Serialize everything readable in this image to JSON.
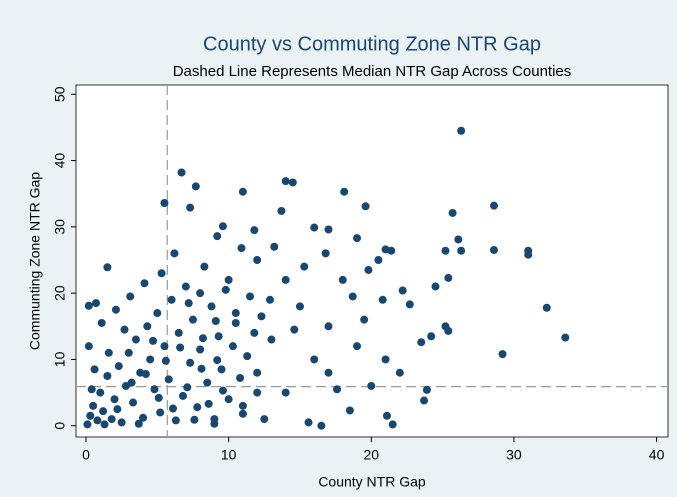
{
  "chart_data": {
    "type": "scatter",
    "title": "County vs Commuting Zone NTR Gap",
    "subtitle": "Dashed Line Represents Median NTR Gap Across Counties",
    "x_label": "County NTR Gap",
    "y_label": "Communting Zone NTR Gap",
    "xlim": [
      -0.7,
      40.8
    ],
    "ylim": [
      -1.7,
      51.4
    ],
    "xticks": [
      0,
      10,
      20,
      30,
      40
    ],
    "yticks": [
      0,
      10,
      20,
      30,
      40,
      50
    ],
    "grid": false,
    "reference_lines": {
      "x": 5.7,
      "y": 5.9,
      "color": "#999999"
    },
    "series": [
      {
        "color": "#1a476f",
        "x": [
          26.3,
          6.7,
          7.7,
          14.0,
          14.5,
          18.1,
          11.0,
          5.5,
          7.3,
          28.6,
          19.6,
          13.7,
          25.7,
          9.6,
          16.0,
          17.0,
          9.2,
          26.1,
          19.0,
          26.3,
          28.6,
          31.0,
          31.0,
          21.0,
          21.4,
          25.2,
          1.5,
          0.2,
          0.7,
          32.3,
          33.6,
          29.2,
          24.5,
          25.4,
          25.2,
          25.4,
          23.9,
          23.7,
          21.1,
          21.5,
          16.5,
          15.6,
          22.7,
          22.2,
          20.8,
          19.5,
          21.0,
          17.0,
          20.0,
          22.0,
          14.0,
          12.0,
          10.0,
          8.0,
          15.0,
          18.0,
          17.0,
          13.0,
          16.0,
          19.0,
          12.0,
          14.0,
          11.0,
          9.0,
          10.5,
          20.5,
          19.8,
          23.5,
          24.2,
          18.5,
          12.5,
          17.6,
          13.2,
          15.3,
          11.8,
          16.8,
          18.7,
          14.6,
          12.9,
          10.9,
          0.1,
          0.3,
          0.5,
          0.8,
          1.0,
          1.2,
          1.5,
          1.8,
          2.0,
          2.3,
          2.5,
          2.8,
          3.0,
          3.3,
          3.5,
          3.8,
          4.0,
          4.3,
          4.5,
          4.8,
          5.0,
          5.2,
          5.5,
          5.8,
          6.0,
          6.3,
          6.5,
          6.8,
          7.0,
          7.3,
          7.5,
          7.8,
          8.0,
          8.3,
          8.5,
          8.8,
          9.0,
          9.3,
          9.5,
          9.8,
          10.0,
          10.3,
          10.5,
          10.8,
          11.0,
          11.3,
          11.5,
          11.8,
          12.0,
          12.3,
          0.2,
          0.6,
          1.1,
          1.6,
          2.2,
          2.7,
          3.2,
          3.7,
          4.2,
          4.7,
          5.1,
          5.6,
          6.1,
          6.6,
          7.1,
          7.6,
          8.1,
          8.6,
          9.1,
          9.6,
          0.4,
          1.3,
          2.1,
          3.1,
          4.1,
          5.3,
          6.2,
          7.2,
          8.2,
          9.2
        ],
        "values": [
          44.5,
          38.2,
          36.1,
          36.9,
          36.7,
          35.3,
          35.3,
          33.6,
          32.9,
          33.2,
          33.1,
          32.4,
          32.1,
          30.1,
          29.9,
          29.6,
          28.6,
          28.1,
          28.3,
          26.4,
          26.5,
          26.4,
          25.8,
          26.6,
          26.4,
          26.4,
          23.9,
          18.1,
          18.5,
          17.8,
          13.3,
          10.8,
          21.0,
          22.3,
          15.0,
          14.3,
          5.4,
          3.8,
          1.5,
          0.2,
          0.0,
          0.5,
          18.3,
          20.4,
          19.0,
          16.0,
          10.0,
          8.0,
          6.0,
          8.0,
          22.0,
          25.0,
          22.0,
          20.0,
          18.0,
          22.0,
          15.0,
          13.0,
          10.0,
          12.0,
          8.0,
          5.0,
          3.0,
          1.0,
          17.0,
          25.0,
          23.5,
          12.6,
          13.5,
          2.3,
          1.0,
          5.5,
          27.0,
          24.0,
          29.5,
          26.0,
          19.5,
          14.5,
          19.0,
          26.8,
          0.2,
          1.5,
          3.0,
          0.8,
          5.0,
          2.2,
          7.5,
          1.0,
          4.0,
          9.0,
          0.5,
          6.0,
          11.0,
          3.5,
          13.0,
          8.0,
          1.2,
          15.0,
          10.0,
          5.5,
          17.0,
          2.0,
          12.0,
          7.0,
          19.0,
          0.8,
          14.0,
          4.5,
          21.0,
          9.5,
          16.0,
          2.8,
          11.5,
          24.0,
          6.5,
          18.0,
          0.3,
          13.5,
          8.5,
          20.5,
          4.0,
          12.0,
          15.5,
          7.2,
          1.8,
          10.5,
          19.5,
          14.0,
          5.0,
          16.5,
          12.0,
          8.5,
          15.5,
          11.0,
          2.5,
          14.5,
          6.5,
          0.3,
          7.8,
          12.8,
          4.2,
          9.8,
          2.6,
          11.8,
          5.8,
          0.9,
          8.6,
          3.3,
          15.8,
          5.3,
          5.5,
          0.2,
          17.5,
          19.5,
          21.5,
          23.0,
          26.0,
          18.5,
          13.2,
          9.9
        ]
      }
    ]
  }
}
